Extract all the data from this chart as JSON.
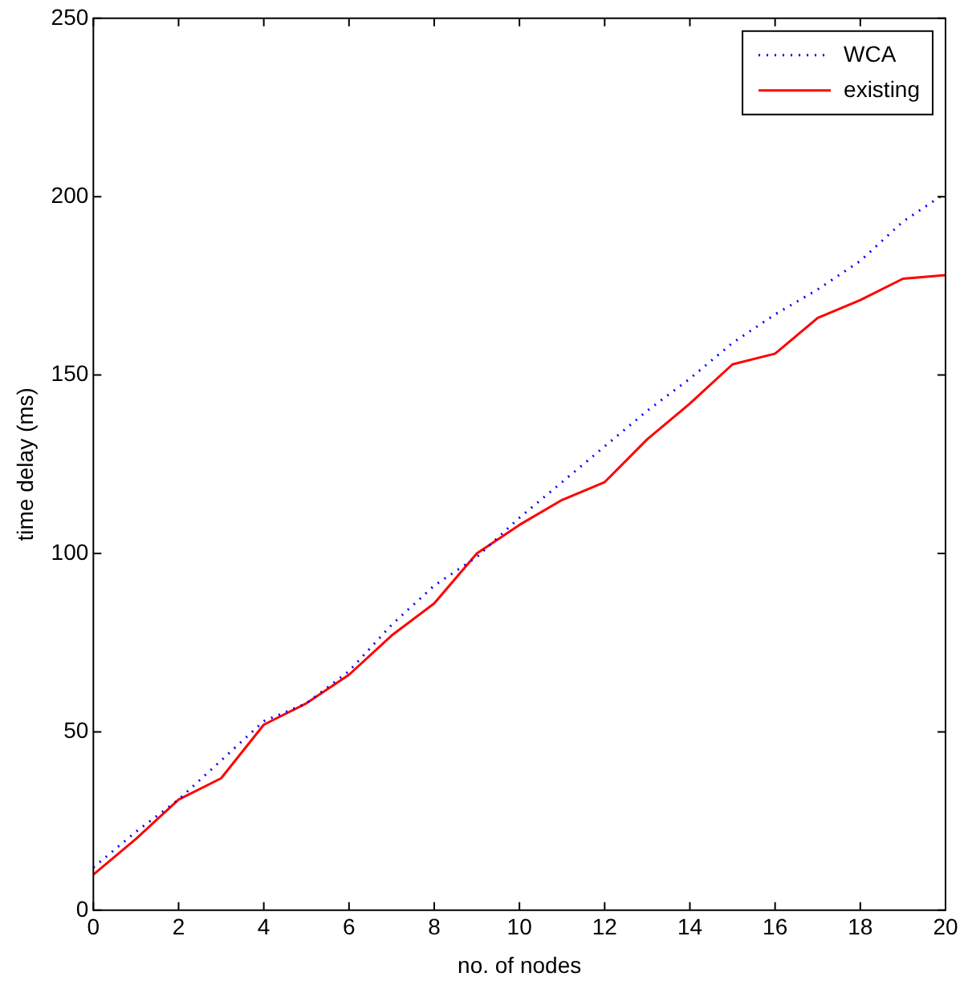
{
  "chart_data": {
    "type": "line",
    "xlabel": "no. of nodes",
    "ylabel": "time delay (ms)",
    "x": [
      0,
      1,
      2,
      3,
      4,
      5,
      6,
      7,
      8,
      9,
      10,
      11,
      12,
      13,
      14,
      15,
      16,
      17,
      18,
      19,
      20
    ],
    "series": [
      {
        "name": "WCA",
        "color": "#0000ff",
        "line_style": "dotted",
        "values": [
          12,
          22,
          31,
          42,
          53,
          58,
          67,
          80,
          91,
          99,
          110,
          120,
          130,
          140,
          149,
          159,
          167,
          174,
          182,
          193,
          201
        ]
      },
      {
        "name": "existing",
        "color": "#ff0000",
        "line_style": "solid",
        "values": [
          10,
          20,
          31,
          37,
          52,
          58,
          66,
          77,
          86,
          100,
          108,
          115,
          120,
          132,
          142,
          153,
          156,
          166,
          171,
          177,
          178
        ]
      }
    ],
    "xlim": [
      0,
      20
    ],
    "xticks": [
      0,
      2,
      4,
      6,
      8,
      10,
      12,
      14,
      16,
      18,
      20
    ],
    "ylim": [
      0,
      250
    ],
    "yticks": [
      0,
      50,
      100,
      150,
      200,
      250
    ],
    "grid": false,
    "legend": "top right",
    "marker": "none"
  }
}
